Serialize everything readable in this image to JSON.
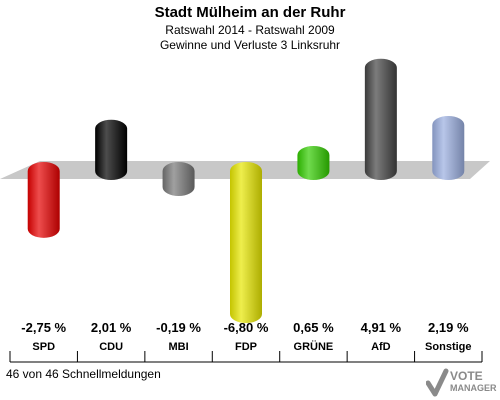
{
  "chart_data": {
    "type": "bar",
    "title": "Stadt Mülheim an der Ruhr",
    "subtitle": [
      "Ratswahl 2014 - Ratswahl 2009",
      "Gewinne und Verluste 3 Linksruhr"
    ],
    "categories": [
      "SPD",
      "CDU",
      "MBI",
      "FDP",
      "GRÜNE",
      "AfD",
      "Sonstige"
    ],
    "values": [
      -2.75,
      2.01,
      -0.19,
      -6.8,
      0.65,
      4.91,
      2.19
    ],
    "value_labels": [
      "-2,75 %",
      "2,01 %",
      "-0,19 %",
      "-6,80 %",
      "0,65 %",
      "4,91 %",
      "2,19 %"
    ],
    "colors": [
      "#e60000",
      "#000000",
      "#777777",
      "#e6e600",
      "#33cc00",
      "#444444",
      "#9aaee0"
    ],
    "ylim": [
      -6.8,
      4.91
    ],
    "grid": false,
    "legend": "none"
  },
  "footer": "46 von 46 Schnellmeldungen",
  "logo": {
    "line1": "VOTE",
    "line2": "MANAGER"
  }
}
